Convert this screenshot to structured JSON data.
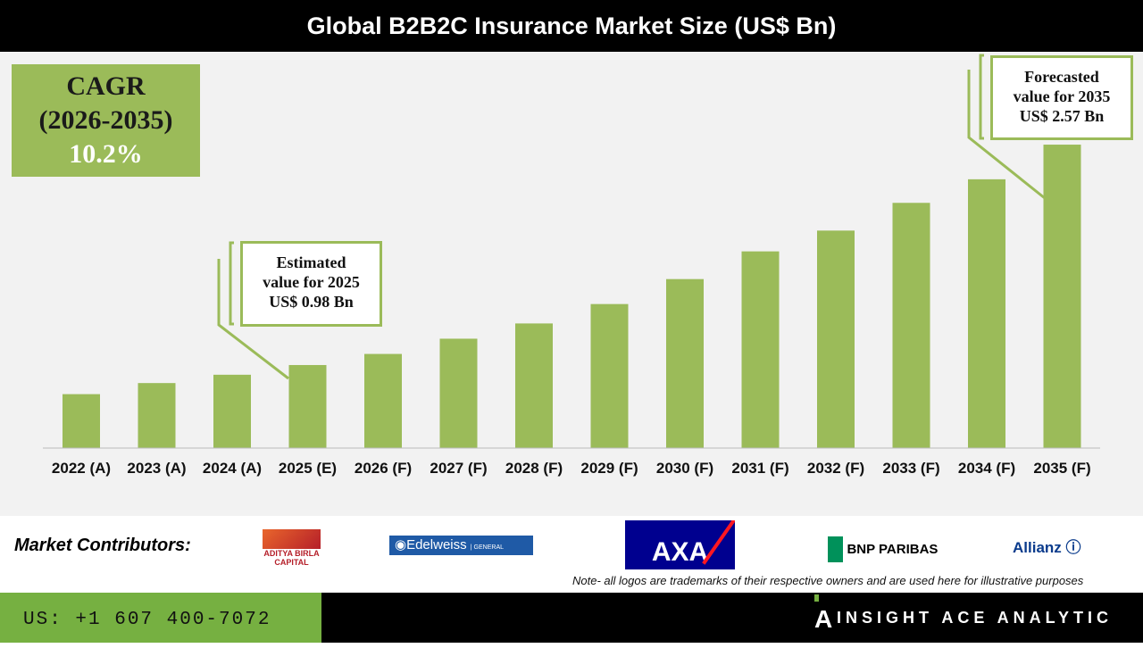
{
  "title": "Global B2B2C Insurance Market Size (US$ Bn)",
  "cagr": {
    "label": "CAGR",
    "period": "(2026-2035)",
    "value": "10.2%"
  },
  "callouts": {
    "estimated": {
      "line1": "Estimated",
      "line2": "value for 2025",
      "line3": "US$ 0.98 Bn"
    },
    "forecast": {
      "line1": "Forecasted",
      "line2": "value for 2035",
      "line3": "US$ 2.57 Bn"
    }
  },
  "chart_data": {
    "type": "bar",
    "title": "Global B2B2C Insurance Market Size (US$ Bn)",
    "categories": [
      "2022 (A)",
      "2023 (A)",
      "2024 (A)",
      "2025 (E)",
      "2026 (F)",
      "2027 (F)",
      "2028 (F)",
      "2029 (F)",
      "2030 (F)",
      "2031 (F)",
      "2032 (F)",
      "2033 (F)",
      "2034 (F)",
      "2035 (F)"
    ],
    "values": [
      0.77,
      0.85,
      0.91,
      0.98,
      1.06,
      1.17,
      1.28,
      1.42,
      1.6,
      1.8,
      1.95,
      2.15,
      2.32,
      2.57
    ],
    "bar_color": "#9bbb59",
    "grid": false
  },
  "footer": {
    "contributors_label": "Market Contributors:",
    "logos": [
      "ADITYA BIRLA CAPITAL HEALTH INSURANCE",
      "Edelweiss GENERAL INSURANCE",
      "AXA",
      "BNP PARIBAS",
      "Allianz"
    ],
    "note": "Note- all logos are trademarks of their respective owners and are used here for illustrative purposes",
    "phone": "US: +1 607 400-7072",
    "brand": "INSIGHT ACE ANALYTIC"
  },
  "colors": {
    "accent": "#9bbb59",
    "footer_green": "#76b041"
  }
}
